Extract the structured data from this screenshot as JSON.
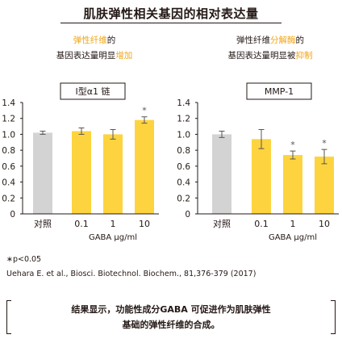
{
  "title": "肌肤弹性相关基因的相对表达量",
  "panels": [
    {
      "subtitle_line1_part1": "弹性纤维",
      "subtitle_line1_part2": "的",
      "subtitle_line2_part1": "基因表达量明显",
      "subtitle_line2_part2": "增加"
    },
    {
      "subtitle_line1_part1": "弹性纤维",
      "subtitle_line1_part2": "分解酶",
      "subtitle_line1_part3": "的",
      "subtitle_line2_part1": "基因表达量明显被",
      "subtitle_line2_part2": "抑制"
    }
  ],
  "chart_data": [
    {
      "type": "bar",
      "title": "I型α1 链",
      "categories": [
        "对照",
        "0.1",
        "1",
        "10"
      ],
      "values": [
        1.02,
        1.04,
        1.0,
        1.18
      ],
      "errors": [
        0.02,
        0.04,
        0.06,
        0.04
      ],
      "significant": [
        "",
        "",
        "",
        "*"
      ],
      "xlabel": "GABA  μg/ml",
      "ylim": [
        0,
        1.4
      ],
      "yticks": [
        "0",
        "0.2",
        "0.4",
        "0.6",
        "0.8",
        "1.0",
        "1.2",
        "1.4"
      ],
      "colors": [
        "#d3d3d3",
        "#fdd43f",
        "#fdd43f",
        "#fdd43f"
      ]
    },
    {
      "type": "bar",
      "title": "MMP-1",
      "categories": [
        "对照",
        "0.1",
        "1",
        "10"
      ],
      "values": [
        1.0,
        0.94,
        0.74,
        0.72
      ],
      "errors": [
        0.04,
        0.12,
        0.05,
        0.09
      ],
      "significant": [
        "",
        "",
        "*",
        "*"
      ],
      "xlabel": "GABA  μg/ml",
      "ylim": [
        0,
        1.4
      ],
      "yticks": [
        "0",
        "0.2",
        "0.4",
        "0.6",
        "0.8",
        "1.0",
        "1.2",
        "1.4"
      ],
      "colors": [
        "#d3d3d3",
        "#fdd43f",
        "#fdd43f",
        "#fdd43f"
      ]
    }
  ],
  "footnote_p": "∗p<0.05",
  "footnote_ref": "Uehara E. et al., Biosci. Biotechnol. Biochem., 81,376-379 (2017)",
  "conclusion_line1": "结果显示，功能性成分GABA 可促进作为肌肤弹性",
  "conclusion_line2": "基础的弹性纤维的合成。"
}
